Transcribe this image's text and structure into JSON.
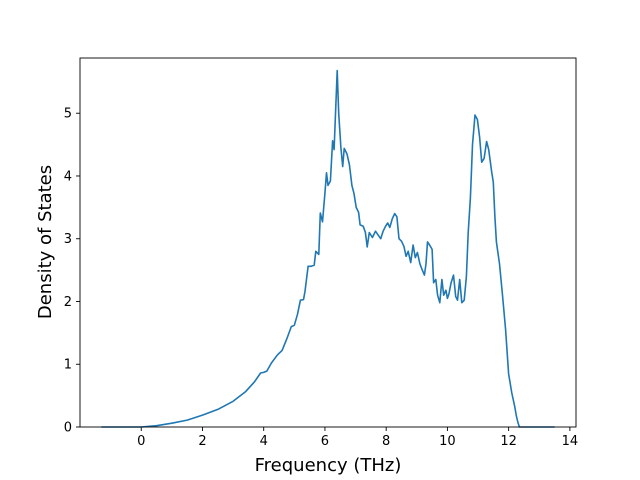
{
  "chart_data": {
    "type": "line",
    "title": "",
    "xlabel": "Frequency (THz)",
    "ylabel": "Density of States",
    "xlim": [
      -2.0,
      14.2
    ],
    "ylim": [
      0,
      5.88
    ],
    "x_ticks": [
      0,
      2,
      4,
      6,
      8,
      10,
      12,
      14
    ],
    "y_ticks": [
      0,
      1,
      2,
      3,
      4,
      5
    ],
    "grid": false,
    "legend": "none",
    "series": [
      {
        "color": "#1f77b4",
        "points": [
          [
            -1.3,
            0
          ],
          [
            -0.5,
            0
          ],
          [
            0.0,
            0
          ],
          [
            0.5,
            0.02
          ],
          [
            1.0,
            0.06
          ],
          [
            1.5,
            0.11
          ],
          [
            2.0,
            0.19
          ],
          [
            2.5,
            0.28
          ],
          [
            3.0,
            0.41
          ],
          [
            3.4,
            0.56
          ],
          [
            3.7,
            0.72
          ],
          [
            3.9,
            0.86
          ],
          [
            4.0,
            0.87
          ],
          [
            4.1,
            0.89
          ],
          [
            4.25,
            1.02
          ],
          [
            4.45,
            1.15
          ],
          [
            4.6,
            1.22
          ],
          [
            4.75,
            1.4
          ],
          [
            4.9,
            1.6
          ],
          [
            5.0,
            1.62
          ],
          [
            5.1,
            1.79
          ],
          [
            5.2,
            2.02
          ],
          [
            5.3,
            2.03
          ],
          [
            5.35,
            2.16
          ],
          [
            5.45,
            2.56
          ],
          [
            5.55,
            2.56
          ],
          [
            5.65,
            2.58
          ],
          [
            5.7,
            2.8
          ],
          [
            5.8,
            2.75
          ],
          [
            5.85,
            3.41
          ],
          [
            5.92,
            3.27
          ],
          [
            6.0,
            3.72
          ],
          [
            6.05,
            4.05
          ],
          [
            6.1,
            3.85
          ],
          [
            6.18,
            3.92
          ],
          [
            6.25,
            4.56
          ],
          [
            6.3,
            4.42
          ],
          [
            6.4,
            5.68
          ],
          [
            6.45,
            5.0
          ],
          [
            6.52,
            4.45
          ],
          [
            6.58,
            4.15
          ],
          [
            6.63,
            4.44
          ],
          [
            6.72,
            4.35
          ],
          [
            6.8,
            4.18
          ],
          [
            6.88,
            3.85
          ],
          [
            6.95,
            3.72
          ],
          [
            7.02,
            3.5
          ],
          [
            7.1,
            3.42
          ],
          [
            7.15,
            3.22
          ],
          [
            7.25,
            3.2
          ],
          [
            7.32,
            3.1
          ],
          [
            7.38,
            2.87
          ],
          [
            7.45,
            3.1
          ],
          [
            7.55,
            3.02
          ],
          [
            7.65,
            3.12
          ],
          [
            7.75,
            3.05
          ],
          [
            7.82,
            3.0
          ],
          [
            7.9,
            3.12
          ],
          [
            7.98,
            3.2
          ],
          [
            8.05,
            3.25
          ],
          [
            8.12,
            3.18
          ],
          [
            8.2,
            3.32
          ],
          [
            8.28,
            3.4
          ],
          [
            8.35,
            3.35
          ],
          [
            8.42,
            3.0
          ],
          [
            8.5,
            2.96
          ],
          [
            8.58,
            2.88
          ],
          [
            8.65,
            2.72
          ],
          [
            8.72,
            2.8
          ],
          [
            8.8,
            2.62
          ],
          [
            8.88,
            2.9
          ],
          [
            8.95,
            2.7
          ],
          [
            9.02,
            2.78
          ],
          [
            9.1,
            2.6
          ],
          [
            9.18,
            2.5
          ],
          [
            9.25,
            2.42
          ],
          [
            9.3,
            2.6
          ],
          [
            9.35,
            2.95
          ],
          [
            9.42,
            2.9
          ],
          [
            9.5,
            2.83
          ],
          [
            9.55,
            2.3
          ],
          [
            9.62,
            2.35
          ],
          [
            9.68,
            2.1
          ],
          [
            9.75,
            1.98
          ],
          [
            9.82,
            2.35
          ],
          [
            9.88,
            2.1
          ],
          [
            9.95,
            2.18
          ],
          [
            10.0,
            2.05
          ],
          [
            10.05,
            2.12
          ],
          [
            10.12,
            2.3
          ],
          [
            10.2,
            2.42
          ],
          [
            10.27,
            2.08
          ],
          [
            10.33,
            2.02
          ],
          [
            10.4,
            2.35
          ],
          [
            10.47,
            1.98
          ],
          [
            10.55,
            2.02
          ],
          [
            10.62,
            2.4
          ],
          [
            10.68,
            3.1
          ],
          [
            10.75,
            3.65
          ],
          [
            10.82,
            4.5
          ],
          [
            10.9,
            4.97
          ],
          [
            10.98,
            4.9
          ],
          [
            11.05,
            4.62
          ],
          [
            11.12,
            4.22
          ],
          [
            11.2,
            4.28
          ],
          [
            11.28,
            4.55
          ],
          [
            11.35,
            4.42
          ],
          [
            11.45,
            4.05
          ],
          [
            11.5,
            3.9
          ],
          [
            11.55,
            3.35
          ],
          [
            11.6,
            2.95
          ],
          [
            11.7,
            2.6
          ],
          [
            11.8,
            2.1
          ],
          [
            11.9,
            1.55
          ],
          [
            12.0,
            0.85
          ],
          [
            12.1,
            0.55
          ],
          [
            12.2,
            0.32
          ],
          [
            12.25,
            0.18
          ],
          [
            12.3,
            0.08
          ],
          [
            12.35,
            0.0
          ],
          [
            12.6,
            0
          ],
          [
            13.0,
            0
          ],
          [
            13.5,
            0
          ]
        ]
      }
    ]
  }
}
